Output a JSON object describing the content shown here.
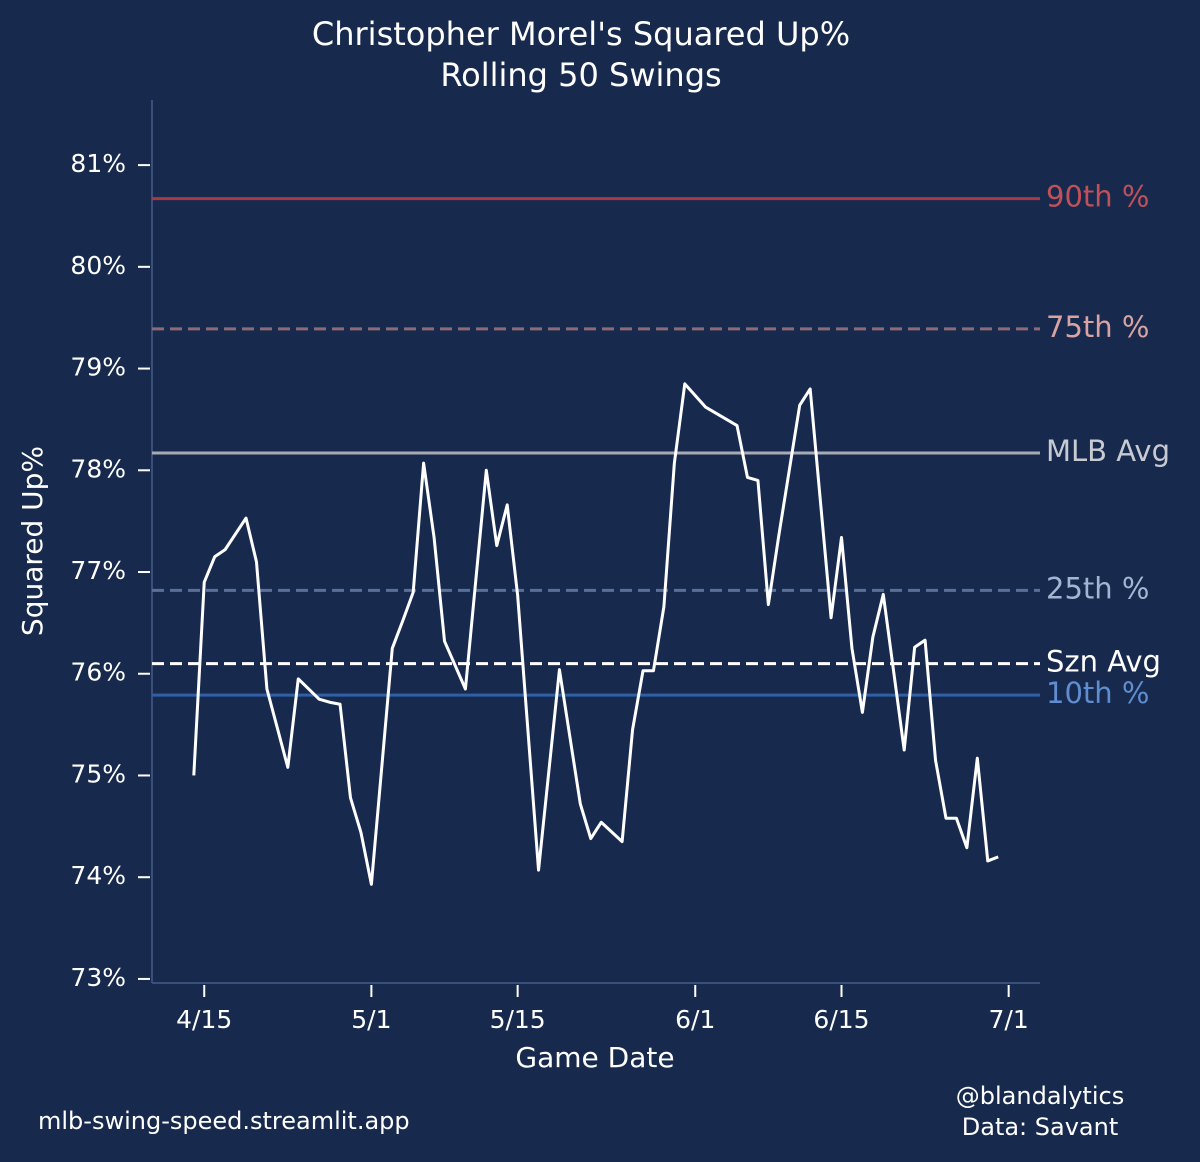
{
  "chart_data": {
    "type": "line",
    "title": "Christopher Morel's Squared Up%",
    "subtitle": "Rolling 50 Swings",
    "x_label": "Game Date",
    "y_label": "Squared Up%",
    "footer_left": "mlb-swing-speed.streamlit.app",
    "footer_right": [
      "@blandalytics",
      "Data: Savant"
    ],
    "x": [
      "4/14",
      "4/15",
      "4/16",
      "4/17",
      "4/19",
      "4/20",
      "4/21",
      "4/23",
      "4/24",
      "4/26",
      "4/27",
      "4/28",
      "4/29",
      "4/30",
      "5/1",
      "5/3",
      "5/4",
      "5/5",
      "5/6",
      "5/7",
      "5/8",
      "5/10",
      "5/12",
      "5/13",
      "5/14",
      "5/15",
      "5/17",
      "5/19",
      "5/21",
      "5/22",
      "5/23",
      "5/25",
      "5/26",
      "5/27",
      "5/28",
      "5/29",
      "5/30",
      "5/31",
      "6/2",
      "6/5",
      "6/6",
      "6/7",
      "6/8",
      "6/9",
      "6/11",
      "6/12",
      "6/14",
      "6/15",
      "6/16",
      "6/17",
      "6/18",
      "6/19",
      "6/21",
      "6/22",
      "6/23",
      "6/24",
      "6/25",
      "6/26",
      "6/27",
      "6/28",
      "6/29",
      "6/30"
    ],
    "series": [
      {
        "name": "Squared Up%",
        "color": "#ffffff",
        "values": [
          75.0,
          76.9,
          77.15,
          77.22,
          77.53,
          77.1,
          75.85,
          75.08,
          75.95,
          75.75,
          75.72,
          75.7,
          74.78,
          74.44,
          73.93,
          76.25,
          76.52,
          76.8,
          78.07,
          77.34,
          76.32,
          75.85,
          78.0,
          77.26,
          77.66,
          76.77,
          74.07,
          76.04,
          74.72,
          74.38,
          74.54,
          74.35,
          75.45,
          76.03,
          76.03,
          76.66,
          78.07,
          78.85,
          78.62,
          78.44,
          77.93,
          77.9,
          76.68,
          77.36,
          78.64,
          78.8,
          76.55,
          77.34,
          76.25,
          75.62,
          76.36,
          76.78,
          75.25,
          76.26,
          76.33,
          75.15,
          74.58,
          74.58,
          74.29,
          75.17,
          74.16,
          74.2
        ]
      }
    ],
    "reference_lines": [
      {
        "name": "90th %",
        "value": 80.67,
        "color": "#a83a44",
        "label_color": "#c0505a",
        "style": "solid"
      },
      {
        "name": "75th %",
        "value": 79.39,
        "color": "#8c6a77",
        "label_color": "#d9a3a3",
        "style": "dashed"
      },
      {
        "name": "MLB Avg",
        "value": 78.17,
        "color": "#a9abb3",
        "label_color": "#c8cad2",
        "style": "solid"
      },
      {
        "name": "25th %",
        "value": 76.82,
        "color": "#5a7099",
        "label_color": "#a3b5d2",
        "style": "dashed"
      },
      {
        "name": "Szn Avg",
        "value": 76.1,
        "color": "#ffffff",
        "label_color": "#ffffff",
        "style": "dashed"
      },
      {
        "name": "10th %",
        "value": 75.79,
        "color": "#2f5fa5",
        "label_color": "#5f8dd0",
        "style": "solid"
      }
    ],
    "xlim": [
      "4/10",
      "7/4"
    ],
    "xticks": [
      "4/15",
      "5/1",
      "5/15",
      "6/1",
      "6/15",
      "7/1"
    ],
    "ylim": [
      72.96,
      81.64
    ],
    "yticks": [
      {
        "value": 73,
        "label": "73%"
      },
      {
        "value": 74,
        "label": "74%"
      },
      {
        "value": 75,
        "label": "75%"
      },
      {
        "value": 76,
        "label": "76%"
      },
      {
        "value": 77,
        "label": "77%"
      },
      {
        "value": 78,
        "label": "78%"
      },
      {
        "value": 79,
        "label": "79%"
      },
      {
        "value": 80,
        "label": "80%"
      },
      {
        "value": 81,
        "label": "81%"
      }
    ],
    "grid": false
  }
}
